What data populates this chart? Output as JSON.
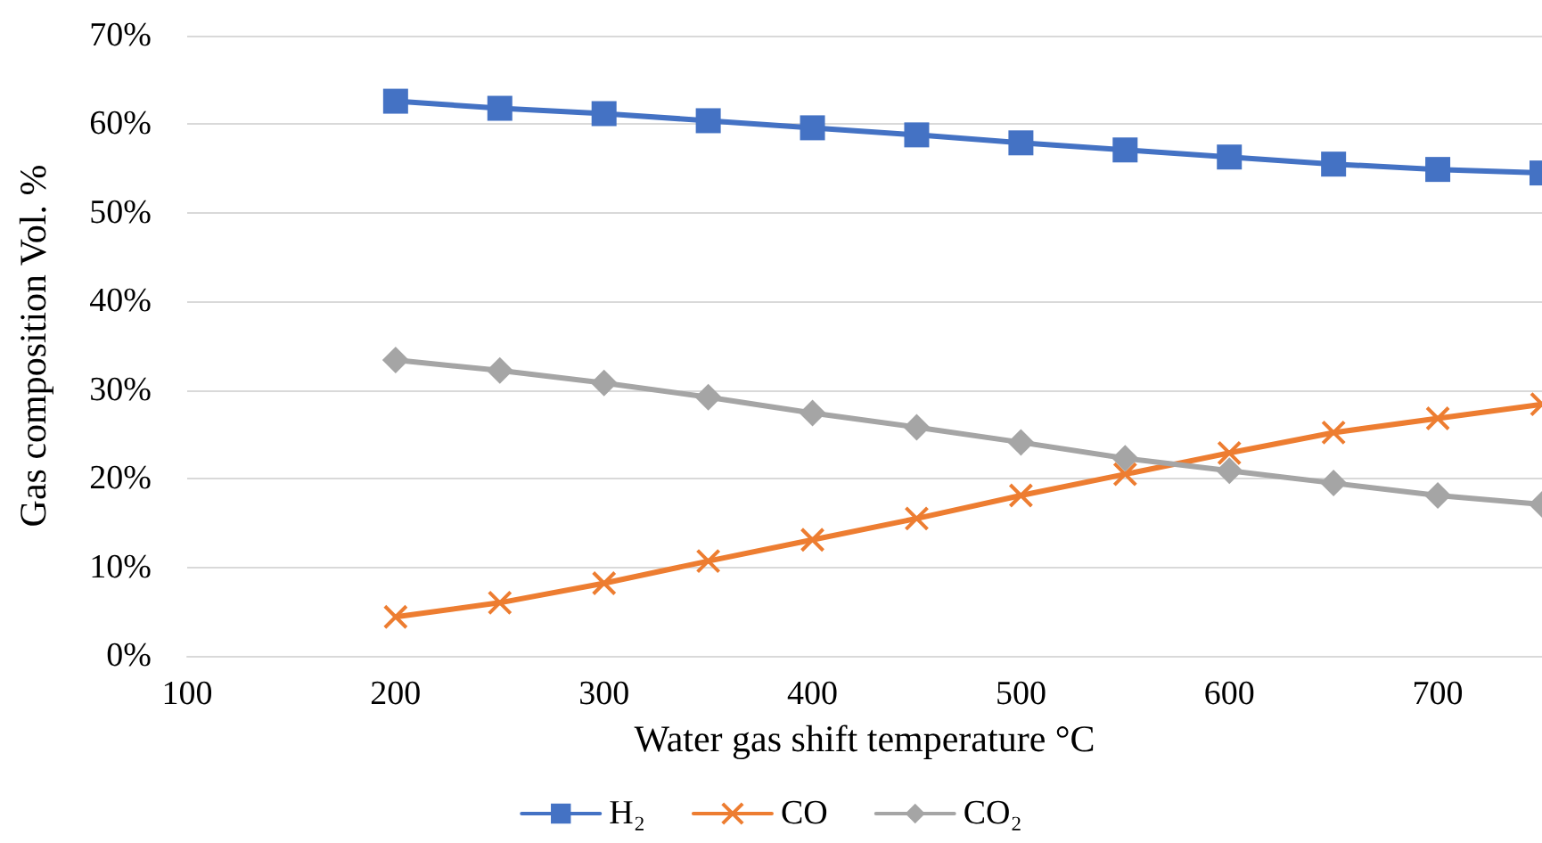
{
  "chart_data": {
    "type": "line",
    "xlabel": "Water gas shift temperature °C",
    "ylabel": "Gas composition Vol. %",
    "x": [
      200,
      250,
      300,
      350,
      400,
      450,
      500,
      550,
      600,
      650,
      700,
      750
    ],
    "series": [
      {
        "name": "H₂",
        "color": "#4472c4",
        "marker": "square",
        "values": [
          62.6,
          61.8,
          61.2,
          60.4,
          59.6,
          58.8,
          57.9,
          57.1,
          56.3,
          55.5,
          54.9,
          54.5
        ]
      },
      {
        "name": "CO",
        "color": "#ed7d31",
        "marker": "cross",
        "values": [
          4.4,
          6.0,
          8.2,
          10.7,
          13.1,
          15.5,
          18.1,
          20.5,
          22.9,
          25.2,
          26.8,
          28.4
        ]
      },
      {
        "name": "CO₂",
        "color": "#a5a5a5",
        "marker": "diamond",
        "values": [
          33.4,
          32.2,
          30.8,
          29.2,
          27.4,
          25.8,
          24.1,
          22.3,
          20.9,
          19.5,
          18.1,
          17.1
        ]
      }
    ],
    "xlim": [
      100,
      750
    ],
    "xticks": [
      100,
      200,
      300,
      400,
      500,
      600,
      700
    ],
    "ylim": [
      0,
      70
    ],
    "yticks": [
      {
        "value": 0,
        "label": "0%"
      },
      {
        "value": 10,
        "label": "10%"
      },
      {
        "value": 20,
        "label": "20%"
      },
      {
        "value": 30,
        "label": "30%"
      },
      {
        "value": 40,
        "label": "40%"
      },
      {
        "value": 50,
        "label": "50%"
      },
      {
        "value": 60,
        "label": "60%"
      },
      {
        "value": 70,
        "label": "70%"
      }
    ],
    "grid": "y",
    "legend": "bottom",
    "line_style": "solid"
  }
}
